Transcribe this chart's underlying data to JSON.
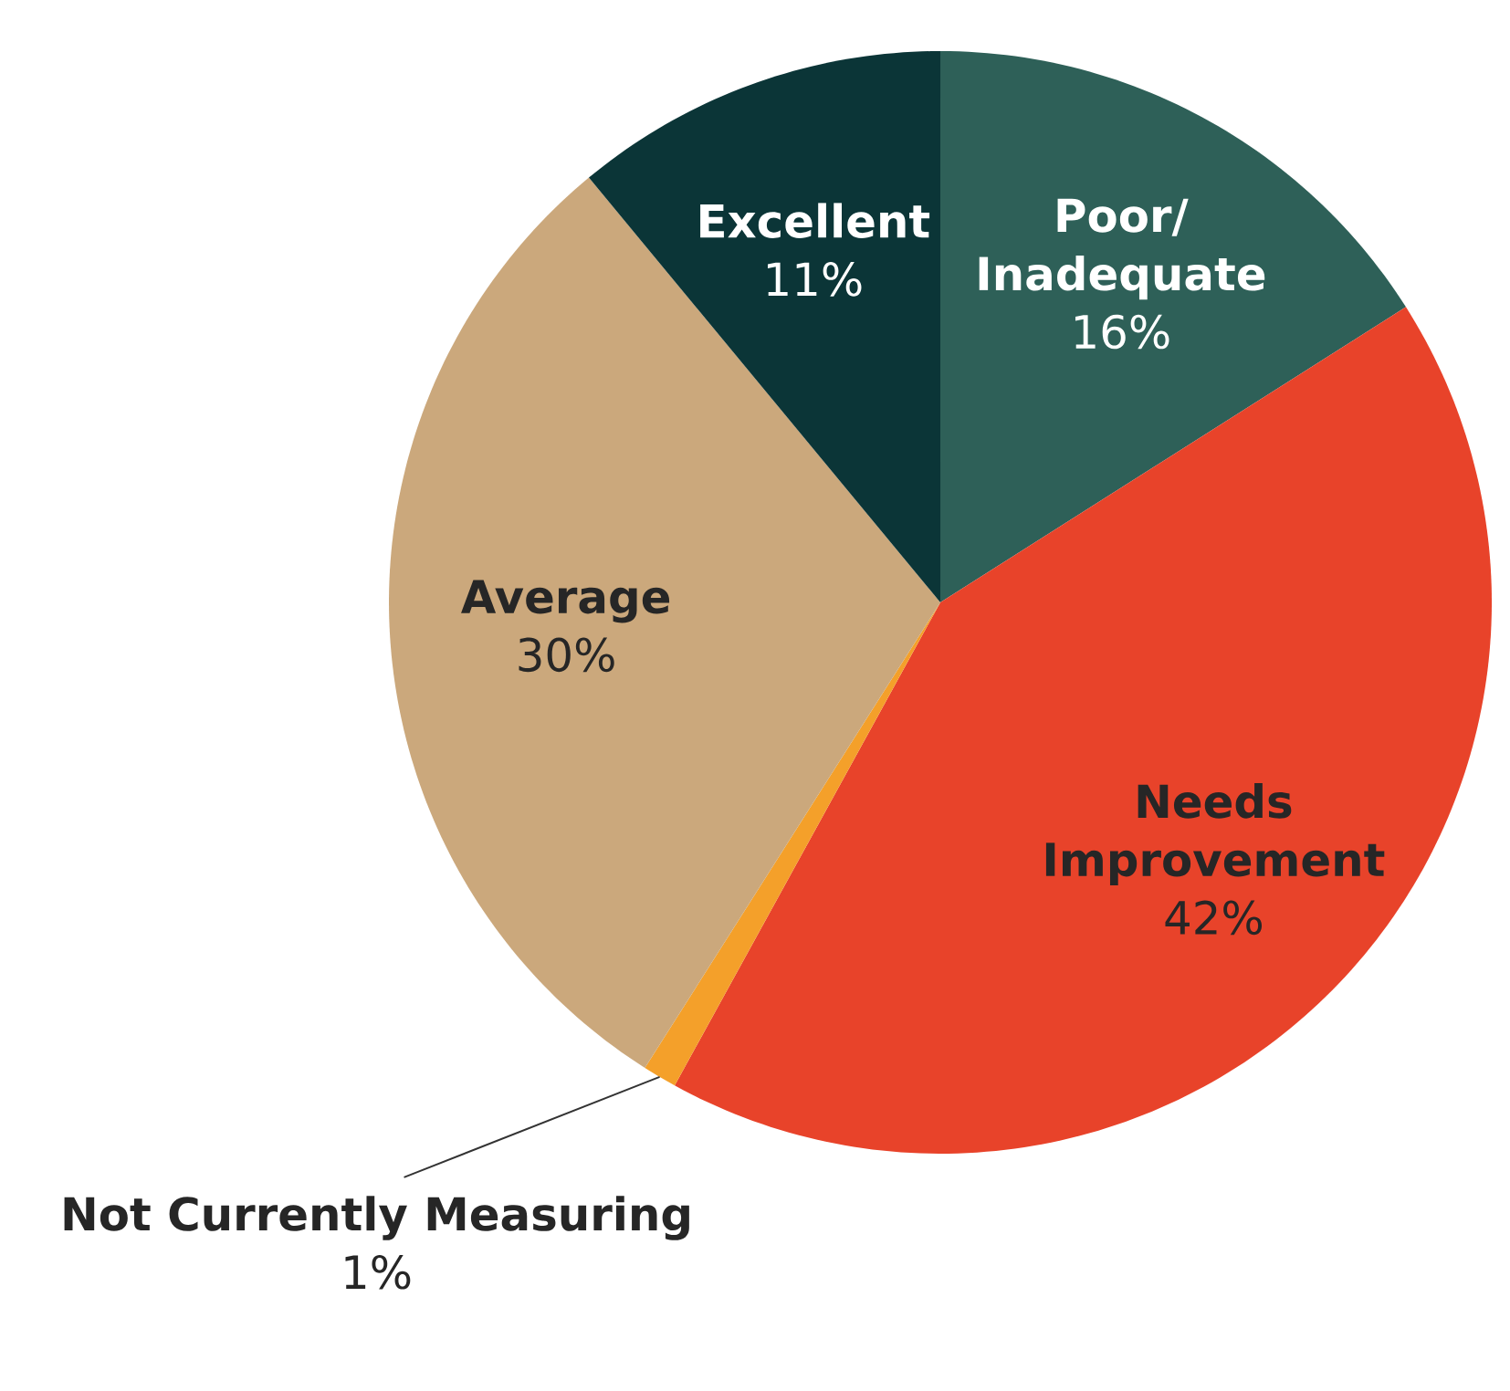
{
  "chart_data": {
    "type": "pie",
    "categories": [
      "Poor/ Inadequate",
      "Needs Improvement",
      "Not Currently Measuring",
      "Average",
      "Excellent"
    ],
    "values": [
      16,
      42,
      1,
      30,
      11
    ],
    "colors": [
      "#2e6058",
      "#e8432a",
      "#f4a02a",
      "#cba87c",
      "#0b3537"
    ],
    "value_labels": [
      "16%",
      "42%",
      "1%",
      "30%",
      "11%"
    ]
  }
}
